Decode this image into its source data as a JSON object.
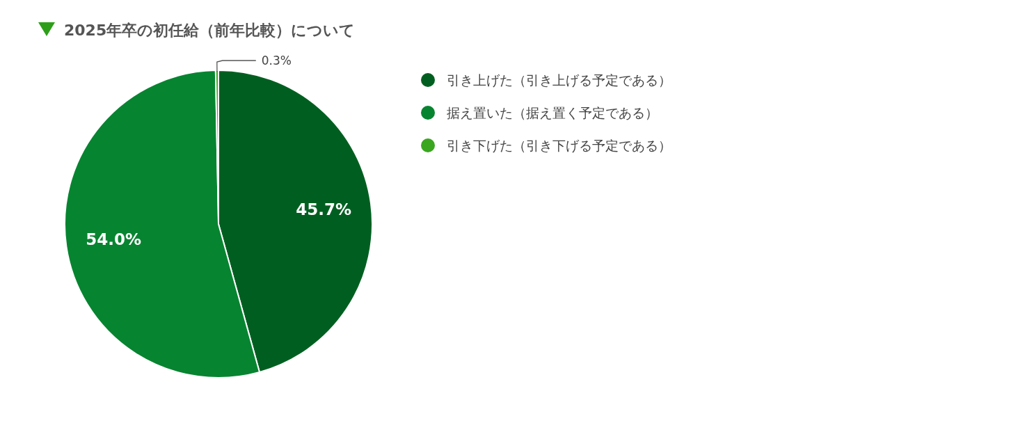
{
  "chart_data": {
    "type": "pie",
    "title": "2025年卒の初任給（前年比較）について",
    "categories": [
      "引き上げた（引き上げる予定である）",
      "据え置いた（据え置く予定である）",
      "引き下げた（引き下げる予定である）"
    ],
    "values": [
      45.7,
      54.0,
      0.3
    ],
    "value_labels": [
      "45.7%",
      "54.0%",
      "0.3%"
    ],
    "colors": [
      "#005f20",
      "#078430",
      "#3aa620"
    ],
    "legend": "right"
  }
}
